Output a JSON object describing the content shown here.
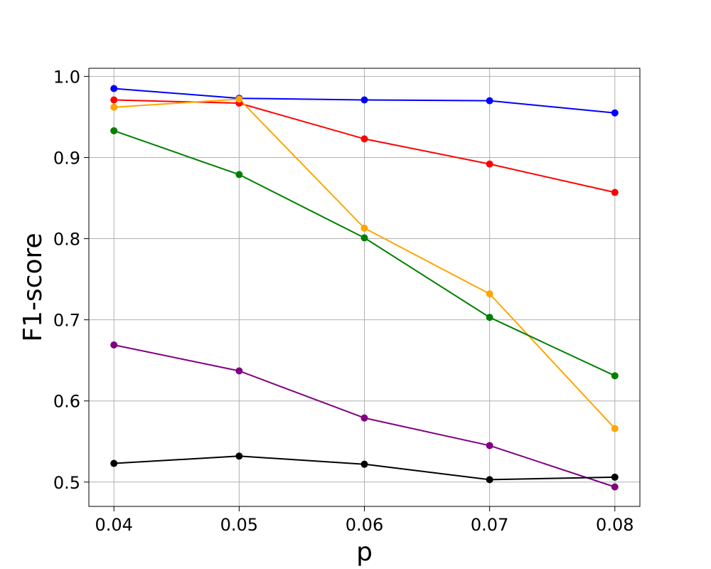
{
  "chart_data": {
    "type": "line",
    "title": "",
    "xlabel": "p",
    "ylabel": "F1-score",
    "x": [
      0.04,
      0.05,
      0.06,
      0.07,
      0.08
    ],
    "xlim": [
      0.038,
      0.082
    ],
    "ylim": [
      0.47,
      1.01
    ],
    "xticks": [
      "0.04",
      "0.05",
      "0.06",
      "0.07",
      "0.08"
    ],
    "xtick_values": [
      0.04,
      0.05,
      0.06,
      0.07,
      0.08
    ],
    "yticks": [
      "0.5",
      "0.6",
      "0.7",
      "0.8",
      "0.9",
      "1.0"
    ],
    "ytick_values": [
      0.5,
      0.6,
      0.7,
      0.8,
      0.9,
      1.0
    ],
    "grid": true,
    "legend": "none",
    "series": [
      {
        "color": "#0000ff",
        "values": [
          0.985,
          0.973,
          0.971,
          0.97,
          0.955
        ]
      },
      {
        "color": "#ff0000",
        "values": [
          0.971,
          0.967,
          0.923,
          0.892,
          0.857
        ]
      },
      {
        "color": "#ffa500",
        "values": [
          0.962,
          0.972,
          0.813,
          0.732,
          0.566
        ]
      },
      {
        "color": "#008000",
        "values": [
          0.933,
          0.879,
          0.801,
          0.703,
          0.631
        ]
      },
      {
        "color": "#800080",
        "values": [
          0.669,
          0.637,
          0.579,
          0.545,
          0.494
        ]
      },
      {
        "color": "#000000",
        "values": [
          0.523,
          0.532,
          0.522,
          0.503,
          0.506
        ]
      }
    ]
  }
}
